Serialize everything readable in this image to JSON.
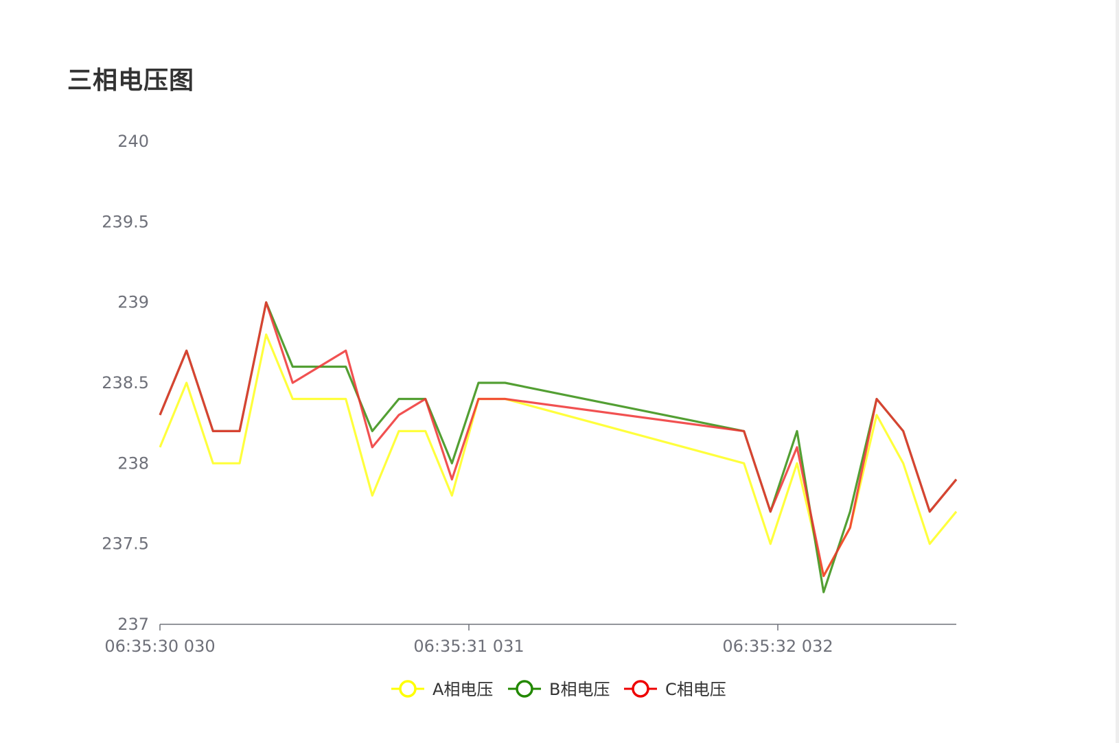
{
  "chart_data": {
    "type": "line",
    "title": "三相电压图",
    "xlabel": "",
    "ylabel": "",
    "ylim": [
      237,
      240
    ],
    "y_ticks": [
      "237",
      "237.5",
      "238",
      "238.5",
      "239",
      "239.5",
      "240"
    ],
    "x_tick_labels": [
      "06:35:30 030",
      "06:35:31 031",
      "06:35:32 032"
    ],
    "grid": false,
    "legend_position": "bottom-center",
    "series": [
      {
        "name": "A相电压",
        "color": "#ffff33",
        "x": [
          0,
          1,
          2,
          3,
          4,
          5,
          7,
          8,
          9,
          10,
          11,
          12,
          13,
          22,
          23,
          24,
          25,
          26,
          27,
          28,
          29,
          30
        ],
        "values": [
          238.1,
          238.5,
          238.0,
          238.0,
          238.8,
          238.4,
          238.4,
          237.8,
          238.2,
          238.2,
          237.8,
          238.4,
          238.4,
          238.0,
          237.5,
          238.0,
          237.3,
          237.6,
          238.3,
          238.0,
          237.5,
          237.7
        ]
      },
      {
        "name": "B相电压",
        "color": "#4a9a28",
        "x": [
          0,
          1,
          2,
          3,
          4,
          5,
          7,
          8,
          9,
          10,
          11,
          12,
          13,
          22,
          23,
          24,
          25,
          26,
          27,
          28,
          29,
          30
        ],
        "values": [
          238.3,
          238.7,
          238.2,
          238.2,
          239.0,
          238.6,
          238.6,
          238.2,
          238.4,
          238.4,
          238.0,
          238.5,
          238.5,
          238.2,
          237.7,
          238.2,
          237.2,
          237.7,
          238.4,
          238.2,
          237.7,
          237.9
        ]
      },
      {
        "name": "C相电压",
        "color": "#ee3333",
        "x": [
          0,
          1,
          2,
          3,
          4,
          5,
          7,
          8,
          9,
          10,
          11,
          12,
          13,
          22,
          23,
          24,
          25,
          26,
          27,
          28,
          29,
          30
        ],
        "values": [
          238.3,
          238.7,
          238.2,
          238.2,
          239.0,
          238.5,
          238.7,
          238.1,
          238.3,
          238.4,
          237.9,
          238.4,
          238.4,
          238.2,
          237.7,
          238.1,
          237.3,
          237.6,
          238.4,
          238.2,
          237.7,
          237.9
        ]
      }
    ]
  },
  "legend_colors": {
    "A相电压": "#ffff00",
    "B相电压": "#228800",
    "C相电压": "#ee0000"
  }
}
